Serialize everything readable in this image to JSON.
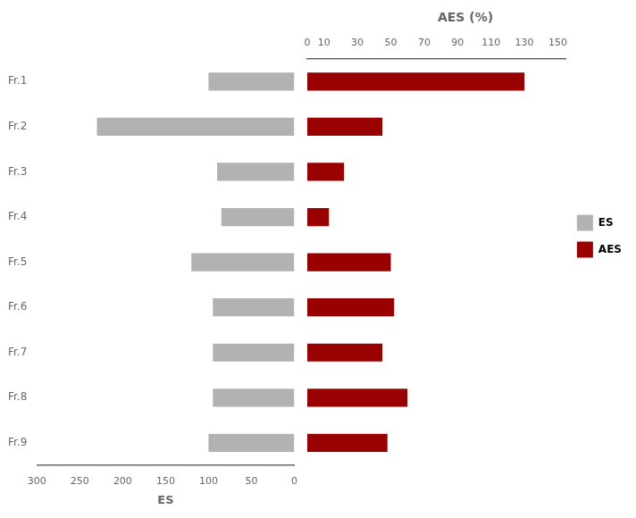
{
  "chart_data": [
    {
      "type": "bar",
      "orientation": "horizontal",
      "xlabel": "ES",
      "categories": [
        "Fr.1",
        "Fr.2",
        "Fr.3",
        "Fr.4",
        "Fr.5",
        "Fr.6",
        "Fr.7",
        "Fr.8",
        "Fr.9"
      ],
      "series": [
        {
          "name": "ES",
          "color": "#b2b2b2",
          "values": [
            100,
            230,
            90,
            85,
            120,
            95,
            95,
            95,
            100
          ]
        }
      ],
      "xlim": [
        300,
        0
      ],
      "xticks": [
        300,
        250,
        200,
        150,
        100,
        50,
        0
      ],
      "grid": false
    },
    {
      "type": "bar",
      "orientation": "horizontal",
      "title": "AES (%)",
      "categories": [
        "Fr.1",
        "Fr.2",
        "Fr.3",
        "Fr.4",
        "Fr.5",
        "Fr.6",
        "Fr.7",
        "Fr.8",
        "Fr.9"
      ],
      "series": [
        {
          "name": "AES",
          "color": "#990000",
          "values": [
            130,
            45,
            22,
            13,
            50,
            52,
            45,
            60,
            48
          ]
        }
      ],
      "xlim": [
        0,
        155
      ],
      "xticks": [
        0,
        10,
        30,
        50,
        70,
        90,
        110,
        130,
        150
      ],
      "grid": false,
      "tick_labels": "x",
      "legend": "right"
    }
  ]
}
